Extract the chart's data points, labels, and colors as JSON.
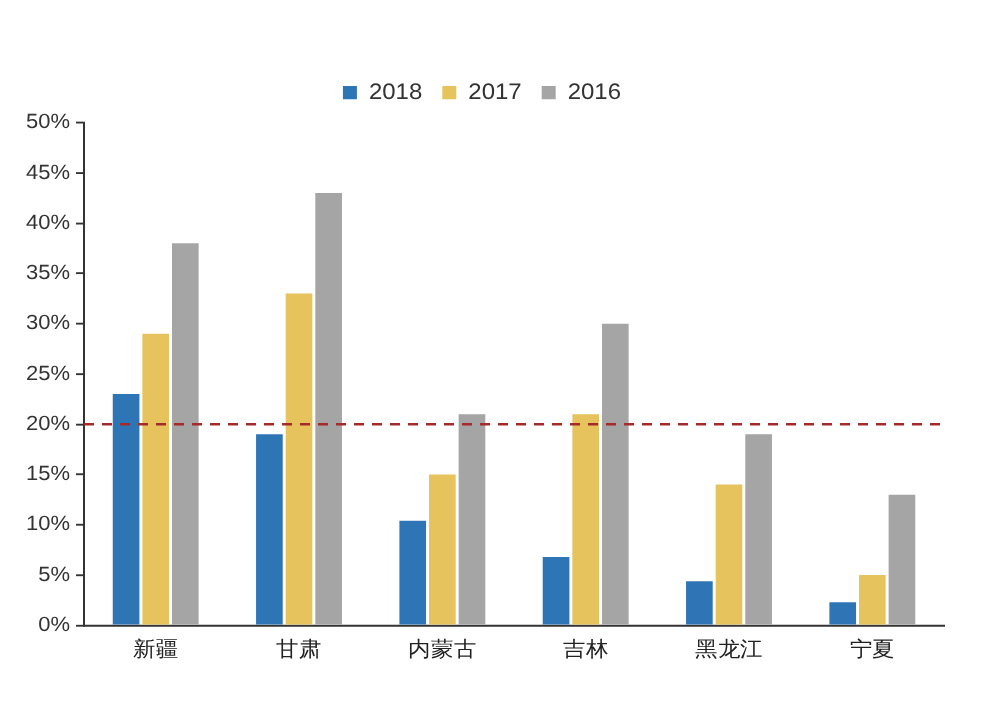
{
  "chart_data": {
    "type": "bar",
    "categories": [
      "新疆",
      "甘肃",
      "内蒙古",
      "吉林",
      "黑龙江",
      "宁夏"
    ],
    "series": [
      {
        "name": "2018",
        "color": "#2e75b6",
        "values": [
          23,
          19,
          10.4,
          6.8,
          4.4,
          2.3
        ]
      },
      {
        "name": "2017",
        "color": "#e6c35c",
        "values": [
          29,
          33,
          15,
          21,
          14,
          5
        ]
      },
      {
        "name": "2016",
        "color": "#a5a5a5",
        "values": [
          38,
          43,
          21,
          30,
          19,
          13
        ]
      }
    ],
    "ylim": [
      0,
      50
    ],
    "yticks": [
      {
        "value": 0,
        "label": "0%"
      },
      {
        "value": 5,
        "label": "5%"
      },
      {
        "value": 10,
        "label": "10%"
      },
      {
        "value": 15,
        "label": "15%"
      },
      {
        "value": 20,
        "label": "20%"
      },
      {
        "value": 25,
        "label": "25%"
      },
      {
        "value": 30,
        "label": "30%"
      },
      {
        "value": 35,
        "label": "35%"
      },
      {
        "value": 40,
        "label": "40%"
      },
      {
        "value": 45,
        "label": "45%"
      },
      {
        "value": 50,
        "label": "50%"
      }
    ],
    "ref_lines": [
      {
        "axis": "y",
        "value": 20,
        "color": "#a52a2a",
        "line_style": "dashed"
      }
    ],
    "grid": false,
    "legend": "top"
  }
}
